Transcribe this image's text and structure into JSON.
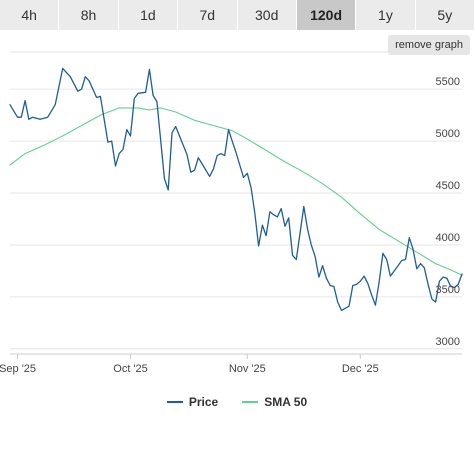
{
  "tabs": [
    {
      "label": "4h",
      "active": false
    },
    {
      "label": "8h",
      "active": false
    },
    {
      "label": "1d",
      "active": false
    },
    {
      "label": "7d",
      "active": false
    },
    {
      "label": "30d",
      "active": false
    },
    {
      "label": "120d",
      "active": true
    },
    {
      "label": "1y",
      "active": false
    },
    {
      "label": "5y",
      "active": false
    }
  ],
  "toolbar": {
    "remove_graph_label": "remove graph"
  },
  "colors": {
    "price": "#1f5e96",
    "sma": "#5fd28e",
    "grid": "#e6e6e6",
    "axis": "#cccccc"
  },
  "chart_data": {
    "type": "line",
    "title": "",
    "xlabel": "",
    "ylabel": "",
    "x_range": [
      "2025-08-30",
      "2025-12-28"
    ],
    "ylim": [
      2950,
      5800
    ],
    "y_ticks": [
      3000,
      3500,
      4000,
      4500,
      5000,
      5500
    ],
    "y_tick_labels": [
      "3000",
      "3500",
      "4000",
      "4500",
      "5000",
      "5500"
    ],
    "x_ticks": [
      {
        "date": "2025-09-01",
        "label": "Sep '25"
      },
      {
        "date": "2025-10-01",
        "label": "Oct '25"
      },
      {
        "date": "2025-11-01",
        "label": "Nov '25"
      },
      {
        "date": "2025-12-01",
        "label": "Dec '25"
      }
    ],
    "grid": true,
    "legend_position": "bottom-center",
    "series": [
      {
        "name": "Price",
        "points": [
          [
            "2025-08-30",
            5350
          ],
          [
            "2025-09-01",
            5230
          ],
          [
            "2025-09-02",
            5230
          ],
          [
            "2025-09-03",
            5390
          ],
          [
            "2025-09-04",
            5210
          ],
          [
            "2025-09-05",
            5230
          ],
          [
            "2025-09-07",
            5210
          ],
          [
            "2025-09-09",
            5230
          ],
          [
            "2025-09-11",
            5350
          ],
          [
            "2025-09-13",
            5700
          ],
          [
            "2025-09-15",
            5620
          ],
          [
            "2025-09-17",
            5480
          ],
          [
            "2025-09-18",
            5500
          ],
          [
            "2025-09-19",
            5620
          ],
          [
            "2025-09-20",
            5580
          ],
          [
            "2025-09-22",
            5420
          ],
          [
            "2025-09-23",
            5430
          ],
          [
            "2025-09-25",
            4990
          ],
          [
            "2025-09-26",
            5000
          ],
          [
            "2025-09-27",
            4760
          ],
          [
            "2025-09-28",
            4880
          ],
          [
            "2025-09-29",
            4920
          ],
          [
            "2025-09-30",
            5110
          ],
          [
            "2025-10-01",
            5050
          ],
          [
            "2025-10-02",
            5410
          ],
          [
            "2025-10-03",
            5460
          ],
          [
            "2025-10-05",
            5470
          ],
          [
            "2025-10-06",
            5690
          ],
          [
            "2025-10-07",
            5440
          ],
          [
            "2025-10-08",
            5380
          ],
          [
            "2025-10-10",
            4640
          ],
          [
            "2025-10-11",
            4530
          ],
          [
            "2025-10-12",
            5080
          ],
          [
            "2025-10-13",
            5140
          ],
          [
            "2025-10-16",
            4870
          ],
          [
            "2025-10-17",
            4700
          ],
          [
            "2025-10-18",
            4720
          ],
          [
            "2025-10-19",
            4840
          ],
          [
            "2025-10-20",
            4780
          ],
          [
            "2025-10-22",
            4660
          ],
          [
            "2025-10-23",
            4730
          ],
          [
            "2025-10-24",
            4860
          ],
          [
            "2025-10-25",
            4880
          ],
          [
            "2025-10-26",
            4860
          ],
          [
            "2025-10-27",
            5110
          ],
          [
            "2025-10-28",
            5000
          ],
          [
            "2025-10-29",
            4890
          ],
          [
            "2025-10-31",
            4650
          ],
          [
            "2025-11-01",
            4690
          ],
          [
            "2025-11-02",
            4550
          ],
          [
            "2025-11-03",
            4310
          ],
          [
            "2025-11-04",
            3990
          ],
          [
            "2025-11-05",
            4190
          ],
          [
            "2025-11-06",
            4090
          ],
          [
            "2025-11-07",
            4320
          ],
          [
            "2025-11-08",
            4290
          ],
          [
            "2025-11-09",
            4270
          ],
          [
            "2025-11-10",
            4350
          ],
          [
            "2025-11-11",
            4180
          ],
          [
            "2025-11-12",
            4260
          ],
          [
            "2025-11-13",
            3900
          ],
          [
            "2025-11-14",
            3860
          ],
          [
            "2025-11-16",
            4370
          ],
          [
            "2025-11-17",
            4150
          ],
          [
            "2025-11-18",
            4000
          ],
          [
            "2025-11-19",
            3890
          ],
          [
            "2025-11-20",
            3690
          ],
          [
            "2025-11-21",
            3800
          ],
          [
            "2025-11-22",
            3680
          ],
          [
            "2025-11-23",
            3610
          ],
          [
            "2025-11-24",
            3600
          ],
          [
            "2025-11-25",
            3450
          ],
          [
            "2025-11-26",
            3370
          ],
          [
            "2025-11-28",
            3410
          ],
          [
            "2025-11-29",
            3610
          ],
          [
            "2025-11-30",
            3620
          ],
          [
            "2025-12-01",
            3650
          ],
          [
            "2025-12-02",
            3700
          ],
          [
            "2025-12-03",
            3630
          ],
          [
            "2025-12-04",
            3520
          ],
          [
            "2025-12-05",
            3420
          ],
          [
            "2025-12-06",
            3640
          ],
          [
            "2025-12-07",
            3920
          ],
          [
            "2025-12-08",
            3860
          ],
          [
            "2025-12-09",
            3700
          ],
          [
            "2025-12-11",
            3800
          ],
          [
            "2025-12-12",
            3850
          ],
          [
            "2025-12-13",
            3860
          ],
          [
            "2025-12-14",
            4070
          ],
          [
            "2025-12-15",
            3960
          ],
          [
            "2025-12-16",
            3770
          ],
          [
            "2025-12-17",
            3820
          ],
          [
            "2025-12-18",
            3780
          ],
          [
            "2025-12-19",
            3620
          ],
          [
            "2025-12-20",
            3480
          ],
          [
            "2025-12-21",
            3450
          ],
          [
            "2025-12-22",
            3650
          ],
          [
            "2025-12-23",
            3690
          ],
          [
            "2025-12-24",
            3680
          ],
          [
            "2025-12-25",
            3600
          ],
          [
            "2025-12-26",
            3590
          ],
          [
            "2025-12-27",
            3620
          ],
          [
            "2025-12-28",
            3720
          ]
        ]
      },
      {
        "name": "SMA 50",
        "points": [
          [
            "2025-08-30",
            4770
          ],
          [
            "2025-09-03",
            4880
          ],
          [
            "2025-09-08",
            4960
          ],
          [
            "2025-09-13",
            5050
          ],
          [
            "2025-09-18",
            5150
          ],
          [
            "2025-09-23",
            5250
          ],
          [
            "2025-09-28",
            5320
          ],
          [
            "2025-10-03",
            5320
          ],
          [
            "2025-10-06",
            5300
          ],
          [
            "2025-10-09",
            5320
          ],
          [
            "2025-10-13",
            5280
          ],
          [
            "2025-10-18",
            5200
          ],
          [
            "2025-10-23",
            5150
          ],
          [
            "2025-10-28",
            5100
          ],
          [
            "2025-11-01",
            5020
          ],
          [
            "2025-11-06",
            4910
          ],
          [
            "2025-11-11",
            4800
          ],
          [
            "2025-11-16",
            4700
          ],
          [
            "2025-11-21",
            4590
          ],
          [
            "2025-11-26",
            4460
          ],
          [
            "2025-12-01",
            4300
          ],
          [
            "2025-12-06",
            4150
          ],
          [
            "2025-12-11",
            4040
          ],
          [
            "2025-12-16",
            3930
          ],
          [
            "2025-12-21",
            3820
          ],
          [
            "2025-12-25",
            3760
          ],
          [
            "2025-12-28",
            3710
          ]
        ]
      }
    ]
  }
}
